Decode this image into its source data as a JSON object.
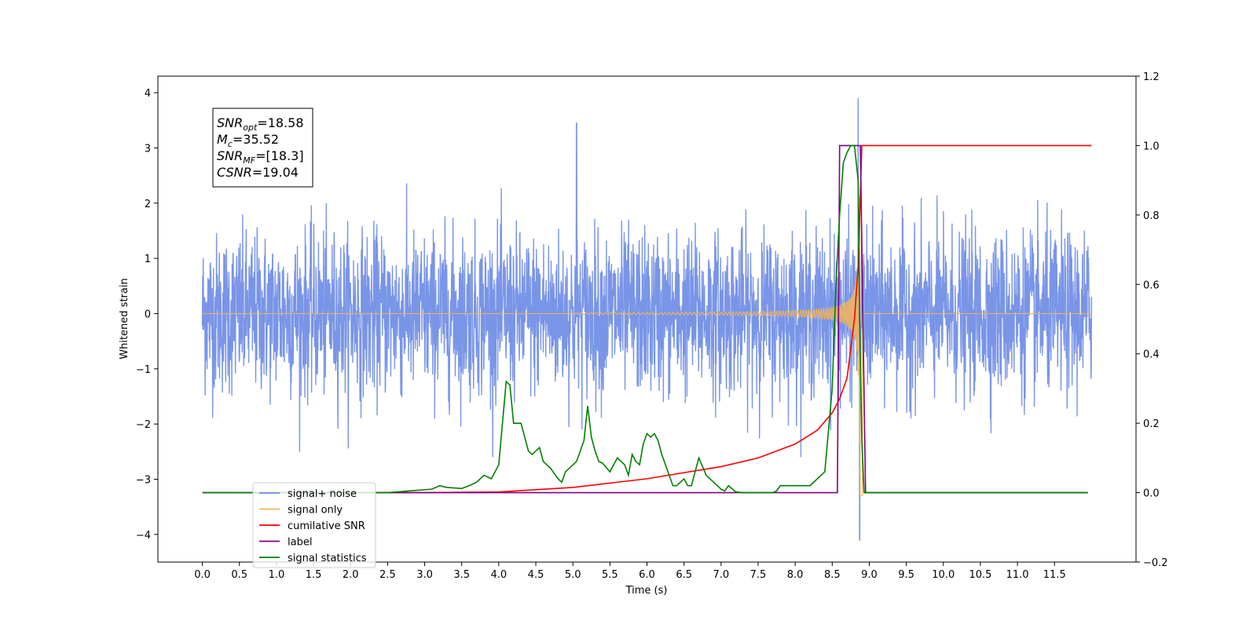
{
  "chart_data": {
    "type": "line",
    "xlabel": "Time (s)",
    "ylabel": "Whitened strain",
    "xlim": [
      -0.6,
      12.6
    ],
    "ylim_left": [
      -4.5,
      4.3
    ],
    "ylim_right": [
      -0.2,
      1.2
    ],
    "x_ticks": [
      "0.0",
      "0.5",
      "1.0",
      "1.5",
      "2.0",
      "2.5",
      "3.0",
      "3.5",
      "4.0",
      "4.5",
      "5.0",
      "5.5",
      "6.0",
      "6.5",
      "7.0",
      "7.5",
      "8.0",
      "8.5",
      "9.0",
      "9.5",
      "10.0",
      "10.5",
      "11.0",
      "11.5"
    ],
    "y_ticks_left": [
      "4",
      "3",
      "2",
      "1",
      "0",
      "−1",
      "−2",
      "−3",
      "−4"
    ],
    "y_ticks_right": [
      "1.2",
      "1.0",
      "0.8",
      "0.6",
      "0.4",
      "0.2",
      "0.0",
      "−0.2"
    ],
    "info_box": [
      {
        "main": "SNR",
        "sub": "opt",
        "value": "=18.58"
      },
      {
        "main": "M",
        "sub": "c",
        "value": "=35.52"
      },
      {
        "main": "SNR",
        "sub": "MF",
        "value": "=[18.3]"
      },
      {
        "main": "CSNR",
        "sub": "",
        "value": "=19.04"
      }
    ],
    "legend_position": "lower-left",
    "legend": [
      {
        "label": "signal+ noise",
        "color": "#6a8ae6"
      },
      {
        "label": "signal only",
        "color": "#f5b559"
      },
      {
        "label": "cumilative SNR",
        "color": "#ff0000"
      },
      {
        "label": "label",
        "color": "#800080"
      },
      {
        "label": "signal statistics",
        "color": "#008000"
      }
    ],
    "series": [
      {
        "name": "signal+ noise",
        "axis": "left",
        "color": "#6a8ae6",
        "description": "Gaussian noise, std ~0.7, peaks to about ±2.5, spikes up to 3.9 near t=8.85",
        "x_start": 0.0,
        "x_end": 12.0,
        "spike_x": 8.85,
        "spike_max": 3.9,
        "spike_min": -4.1
      },
      {
        "name": "signal only",
        "axis": "left",
        "color": "#f5b559",
        "chirp_start": 5.0,
        "merger_t": 8.88,
        "max_amp": 3.3,
        "x_start": 0.0,
        "x_end": 12.0
      },
      {
        "name": "cumilative SNR",
        "axis": "right",
        "color": "#ff0000",
        "x": [
          2.3,
          3.0,
          4.0,
          5.0,
          6.0,
          7.0,
          7.5,
          8.0,
          8.3,
          8.5,
          8.6,
          8.7,
          8.8,
          8.85,
          8.9,
          8.95,
          12.0
        ],
        "values": [
          0.0,
          0.0,
          0.002,
          0.015,
          0.04,
          0.075,
          0.1,
          0.14,
          0.18,
          0.23,
          0.27,
          0.33,
          0.5,
          0.65,
          1.0,
          1.0,
          1.0
        ]
      },
      {
        "name": "label",
        "axis": "right",
        "color": "#800080",
        "x": [
          0.0,
          8.57,
          8.6,
          8.85,
          8.88,
          8.95,
          11.95
        ],
        "values": [
          0.0,
          0.0,
          1.0,
          1.0,
          1.0,
          0.0,
          0.0
        ]
      },
      {
        "name": "signal statistics",
        "axis": "right",
        "color": "#008000",
        "x": [
          0.0,
          2.5,
          2.8,
          3.1,
          3.2,
          3.3,
          3.5,
          3.6,
          3.7,
          3.8,
          3.9,
          4.0,
          4.05,
          4.1,
          4.15,
          4.2,
          4.3,
          4.4,
          4.45,
          4.55,
          4.6,
          4.7,
          4.8,
          4.85,
          4.9,
          5.0,
          5.05,
          5.1,
          5.15,
          5.2,
          5.25,
          5.3,
          5.35,
          5.4,
          5.5,
          5.6,
          5.7,
          5.75,
          5.8,
          5.85,
          5.9,
          5.95,
          6.0,
          6.05,
          6.1,
          6.15,
          6.2,
          6.3,
          6.35,
          6.4,
          6.45,
          6.5,
          6.55,
          6.6,
          6.7,
          6.8,
          6.9,
          7.0,
          7.05,
          7.1,
          7.2,
          7.3,
          7.5,
          7.7,
          7.75,
          7.8,
          8.0,
          8.2,
          8.3,
          8.4,
          8.5,
          8.55,
          8.6,
          8.65,
          8.7,
          8.75,
          8.8,
          8.85,
          8.87,
          8.9,
          8.93,
          8.97,
          9.0,
          11.95
        ],
        "values": [
          0.0,
          0.0,
          0.005,
          0.01,
          0.02,
          0.015,
          0.012,
          0.02,
          0.03,
          0.05,
          0.04,
          0.08,
          0.2,
          0.32,
          0.31,
          0.2,
          0.2,
          0.12,
          0.11,
          0.13,
          0.09,
          0.07,
          0.04,
          0.03,
          0.06,
          0.08,
          0.09,
          0.12,
          0.15,
          0.25,
          0.16,
          0.12,
          0.09,
          0.085,
          0.06,
          0.1,
          0.08,
          0.05,
          0.11,
          0.09,
          0.08,
          0.14,
          0.17,
          0.16,
          0.17,
          0.15,
          0.11,
          0.05,
          0.02,
          0.02,
          0.03,
          0.04,
          0.02,
          0.02,
          0.1,
          0.05,
          0.03,
          0.01,
          0.005,
          0.02,
          0.002,
          0.0,
          0.0,
          0.0,
          0.005,
          0.02,
          0.02,
          0.02,
          0.04,
          0.06,
          0.3,
          0.6,
          0.8,
          0.95,
          0.98,
          1.0,
          1.0,
          0.9,
          0.5,
          0.15,
          0.0,
          0.0,
          0.0,
          0.0
        ]
      }
    ]
  }
}
